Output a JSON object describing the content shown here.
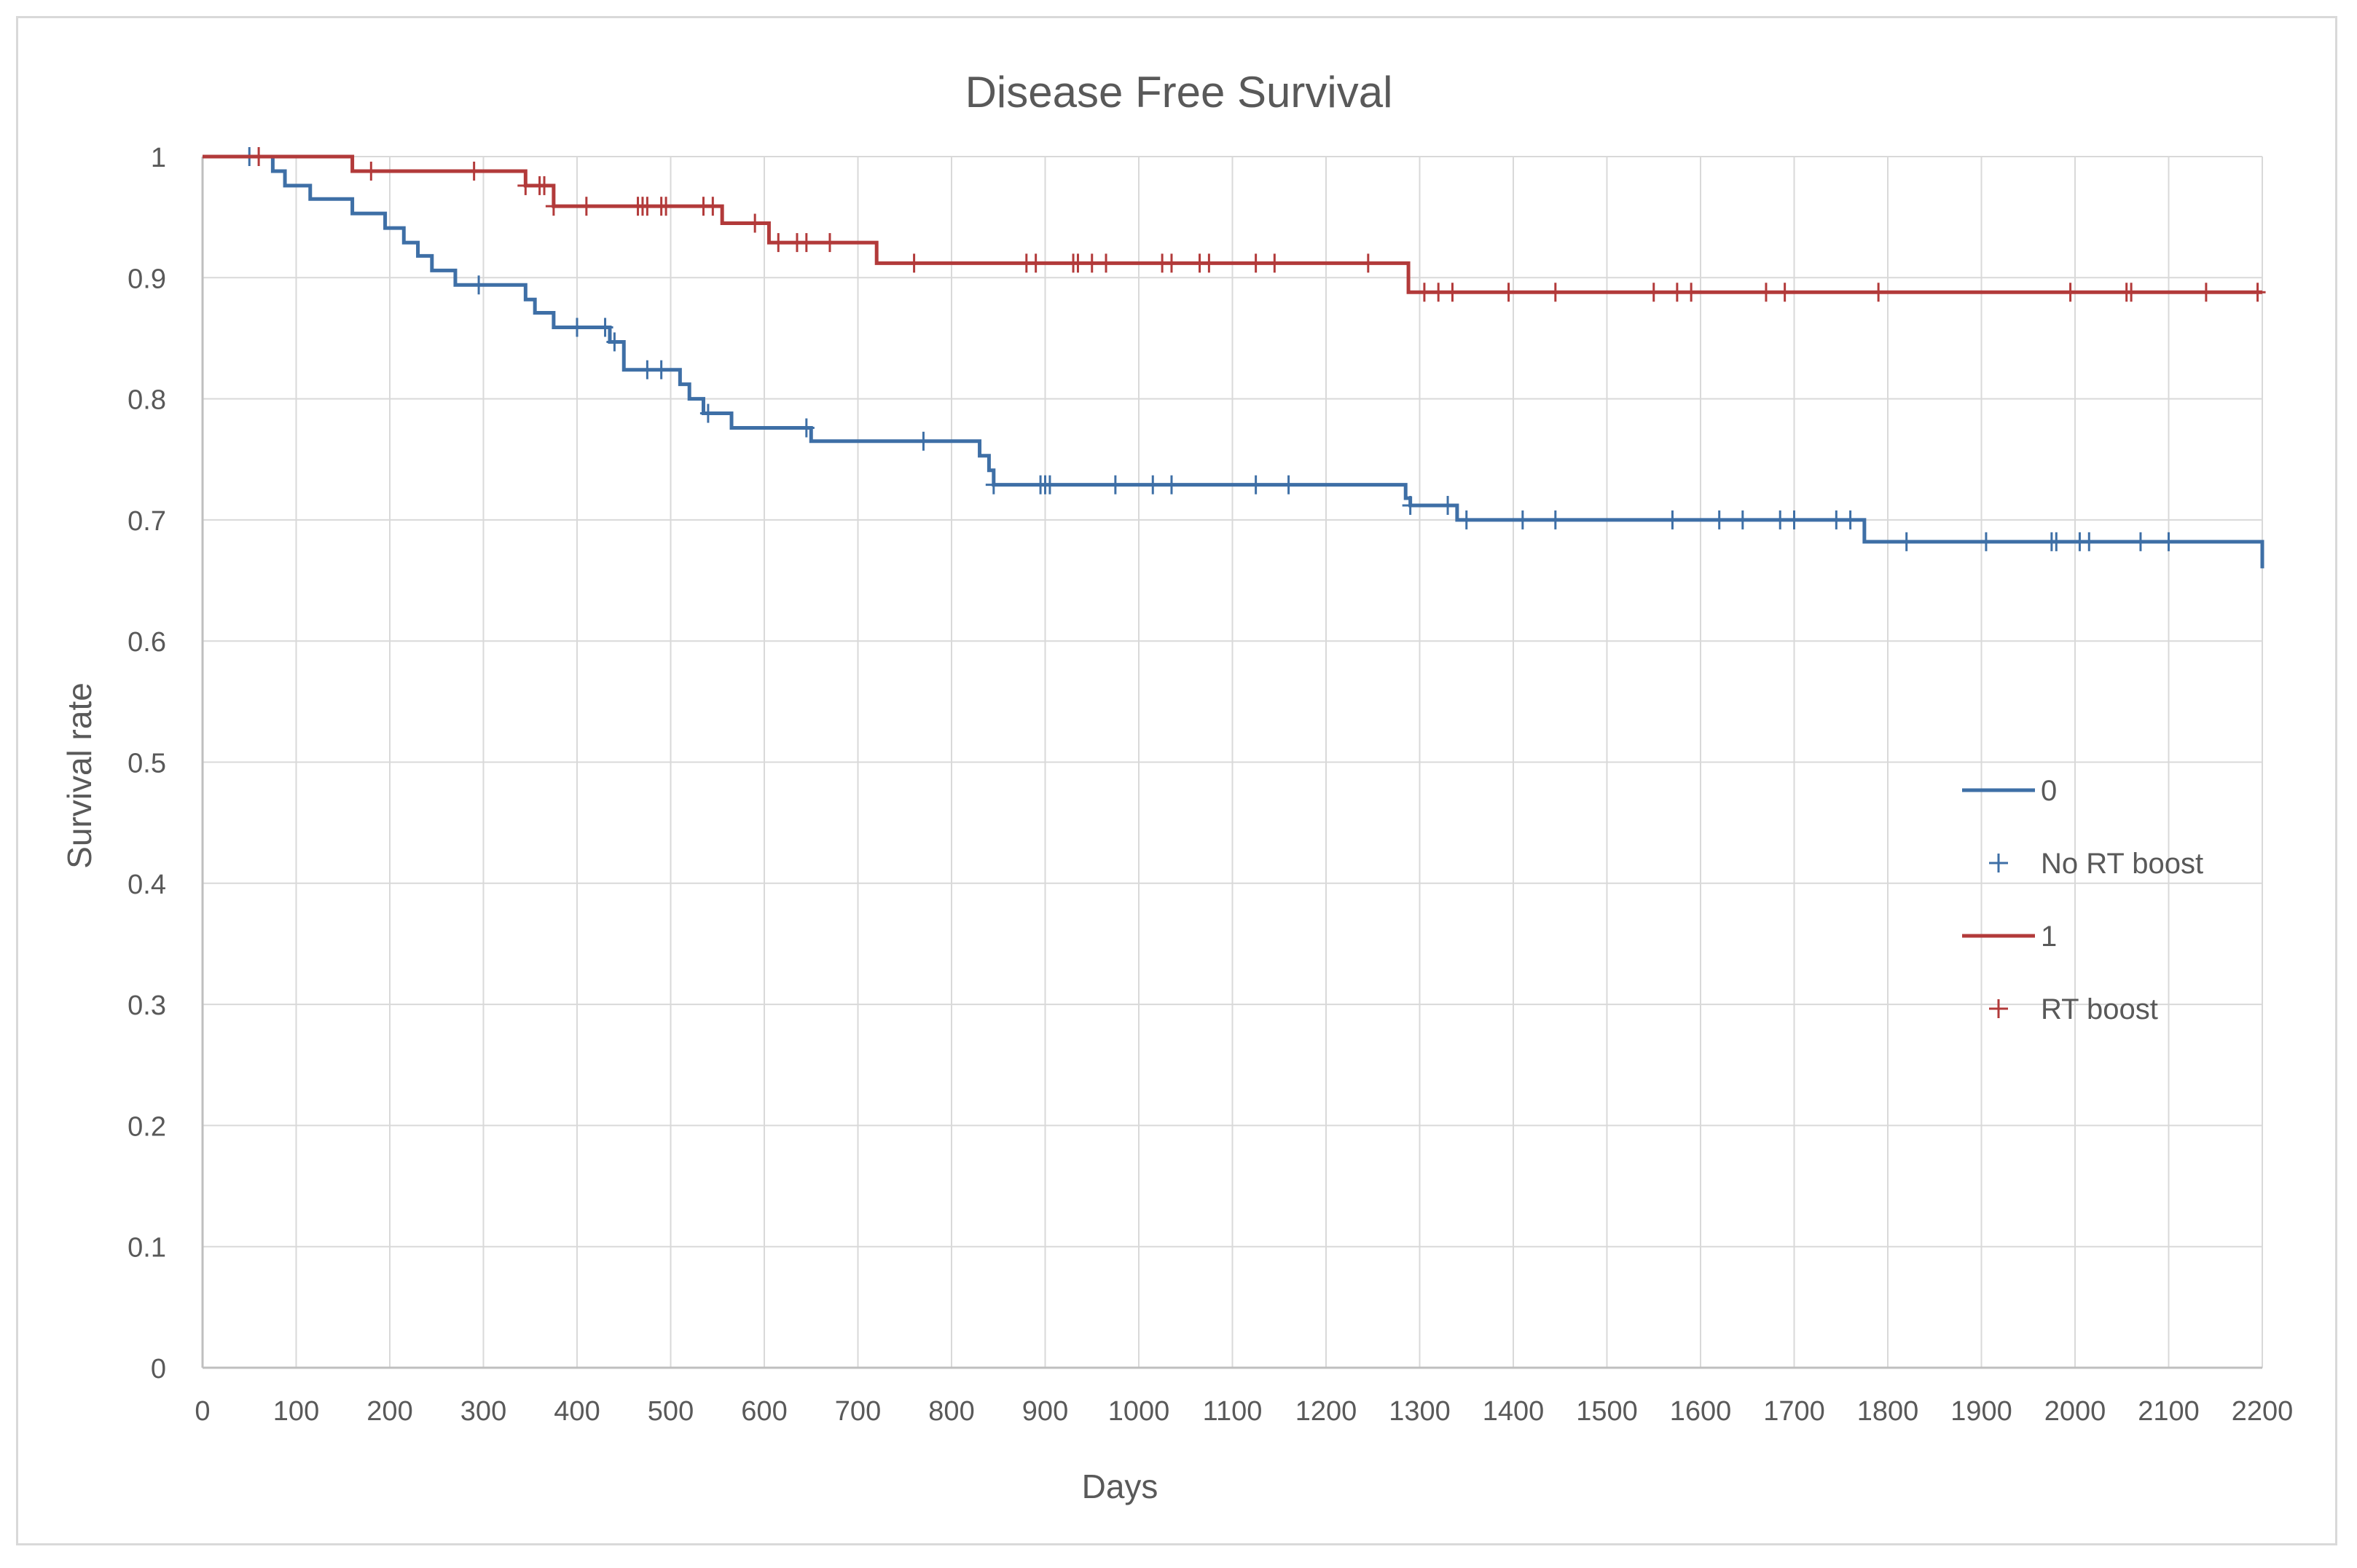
{
  "chart_data": {
    "type": "line",
    "title": "Disease Free Survival",
    "xlabel": "Days",
    "ylabel": "Survival rate",
    "xlim": [
      0,
      2200
    ],
    "ylim": [
      0,
      1
    ],
    "xticks": [
      "0",
      "100",
      "200",
      "300",
      "400",
      "500",
      "600",
      "700",
      "800",
      "900",
      "1000",
      "1100",
      "1200",
      "1300",
      "1400",
      "1500",
      "1600",
      "1700",
      "1800",
      "1900",
      "2000",
      "2100",
      "2200"
    ],
    "yticks": [
      "0",
      "0.1",
      "0.2",
      "0.3",
      "0.4",
      "0.5",
      "0.6",
      "0.7",
      "0.8",
      "0.9",
      "1"
    ],
    "grid": true,
    "legend_position": "right",
    "legend": [
      {
        "label": "0",
        "kind": "line",
        "color": "#3e6fa6"
      },
      {
        "label": "No RT boost",
        "kind": "marker",
        "color": "#3e6fa6"
      },
      {
        "label": "1",
        "kind": "line",
        "color": "#b23a3a"
      },
      {
        "label": "RT boost",
        "kind": "marker",
        "color": "#b23a3a"
      }
    ],
    "series": [
      {
        "name": "0",
        "color": "#3e6fa6",
        "steps": [
          [
            0,
            1
          ],
          [
            75,
            0.988
          ],
          [
            88,
            0.976
          ],
          [
            115,
            0.965
          ],
          [
            160,
            0.953
          ],
          [
            195,
            0.941
          ],
          [
            215,
            0.929
          ],
          [
            230,
            0.918
          ],
          [
            245,
            0.906
          ],
          [
            270,
            0.894
          ],
          [
            345,
            0.882
          ],
          [
            355,
            0.871
          ],
          [
            375,
            0.859
          ],
          [
            435,
            0.847
          ],
          [
            450,
            0.824
          ],
          [
            510,
            0.812
          ],
          [
            520,
            0.8
          ],
          [
            535,
            0.788
          ],
          [
            565,
            0.776
          ],
          [
            650,
            0.765
          ],
          [
            830,
            0.753
          ],
          [
            840,
            0.741
          ],
          [
            845,
            0.729
          ],
          [
            1285,
            0.718
          ],
          [
            1290,
            0.712
          ],
          [
            1340,
            0.7
          ],
          [
            1775,
            0.682
          ],
          [
            2200,
            0.66
          ]
        ],
        "censored": [
          50,
          295,
          400,
          430,
          440,
          475,
          490,
          540,
          645,
          770,
          845,
          895,
          900,
          905,
          975,
          1015,
          1035,
          1125,
          1160,
          1290,
          1330,
          1350,
          1410,
          1445,
          1570,
          1620,
          1645,
          1685,
          1700,
          1745,
          1760,
          1820,
          1905,
          1975,
          1980,
          2005,
          2015,
          2070,
          2100
        ]
      },
      {
        "name": "1",
        "color": "#b23a3a",
        "steps": [
          [
            0,
            1
          ],
          [
            160,
            0.988
          ],
          [
            345,
            0.976
          ],
          [
            375,
            0.959
          ],
          [
            555,
            0.945
          ],
          [
            605,
            0.929
          ],
          [
            720,
            0.912
          ],
          [
            1288,
            0.888
          ],
          [
            2200,
            0.888
          ]
        ],
        "censored": [
          60,
          180,
          290,
          345,
          360,
          365,
          375,
          410,
          465,
          470,
          475,
          490,
          495,
          535,
          545,
          590,
          615,
          635,
          645,
          670,
          760,
          880,
          890,
          930,
          935,
          950,
          965,
          1025,
          1035,
          1065,
          1075,
          1125,
          1145,
          1245,
          1305,
          1320,
          1335,
          1395,
          1445,
          1550,
          1575,
          1590,
          1670,
          1690,
          1790,
          1995,
          2055,
          2060,
          2140,
          2195
        ]
      }
    ]
  }
}
